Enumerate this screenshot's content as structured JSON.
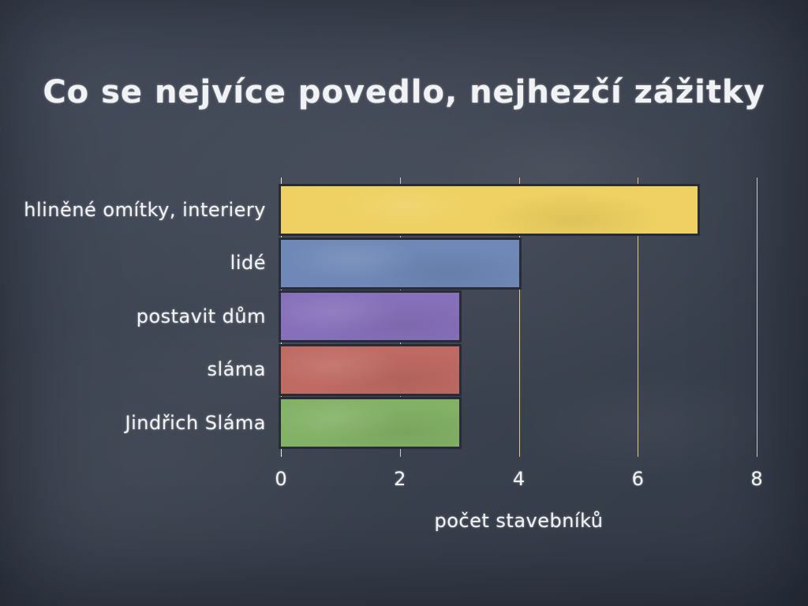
{
  "slide": {
    "theme": "chalkboard",
    "background_color": "#3d4451",
    "text_color": "#f0f2f4"
  },
  "chart_data": {
    "type": "bar",
    "orientation": "horizontal",
    "title": "Co se nejvíce povedlo, nejhezčí zážitky",
    "categories": [
      "hliněné omítky, interiery",
      "lidé",
      "postavit dům",
      "sláma",
      "Jindřich Sláma"
    ],
    "values": [
      7,
      4,
      3,
      3,
      3
    ],
    "bar_colors": [
      "#eed162",
      "#6f88b7",
      "#8770ba",
      "#bf6a63",
      "#83b166"
    ],
    "bar_border_color": "#272c37",
    "xlabel": "počet stavebníků",
    "xlim": [
      0,
      8
    ],
    "xticks": [
      "0",
      "2",
      "4",
      "6",
      "8"
    ],
    "grid": true,
    "gridline_color": "#ece0ba",
    "zero_line_color": "#f8f8f4",
    "legend": "none"
  }
}
